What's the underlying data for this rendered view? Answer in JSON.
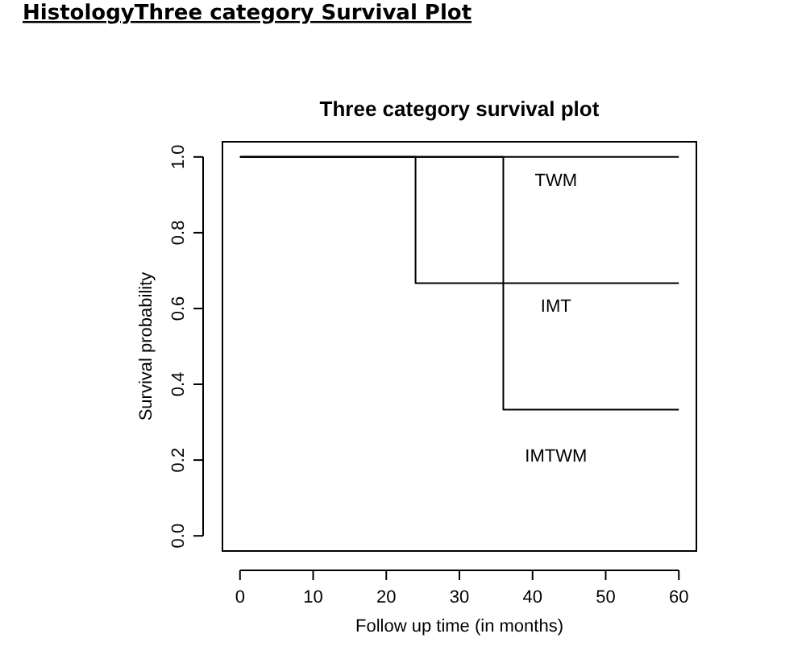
{
  "chart_data": {
    "type": "step",
    "title": "HistologyThree category Survival Plot",
    "subtitle": "Three category survival plot",
    "xlabel": "Follow up time (in months)",
    "ylabel": "Survival probability",
    "x": [
      0,
      24,
      36,
      60
    ],
    "series": [
      {
        "name": "TWM",
        "color": "#000000",
        "values": [
          1,
          1,
          1,
          1
        ]
      },
      {
        "name": "IMT",
        "color": "#000000",
        "values": [
          1,
          0.667,
          0.667,
          0.667
        ]
      },
      {
        "name": "IMTWM",
        "color": "#000000",
        "values": [
          1,
          1,
          0.333,
          0.333
        ]
      }
    ],
    "xlim": [
      -2.4,
      62.4
    ],
    "ylim": [
      -0.04,
      1.04
    ],
    "xticks": [
      0,
      10,
      20,
      30,
      40,
      50,
      60
    ],
    "yticks": [
      {
        "value": 0,
        "label": "0.0"
      },
      {
        "value": 0.2,
        "label": "0.2"
      },
      {
        "value": 0.4,
        "label": "0.4"
      },
      {
        "value": 0.6,
        "label": "0.6"
      },
      {
        "value": 0.8,
        "label": "0.8"
      },
      {
        "value": 1,
        "label": "1.0"
      }
    ],
    "grid": false
  }
}
